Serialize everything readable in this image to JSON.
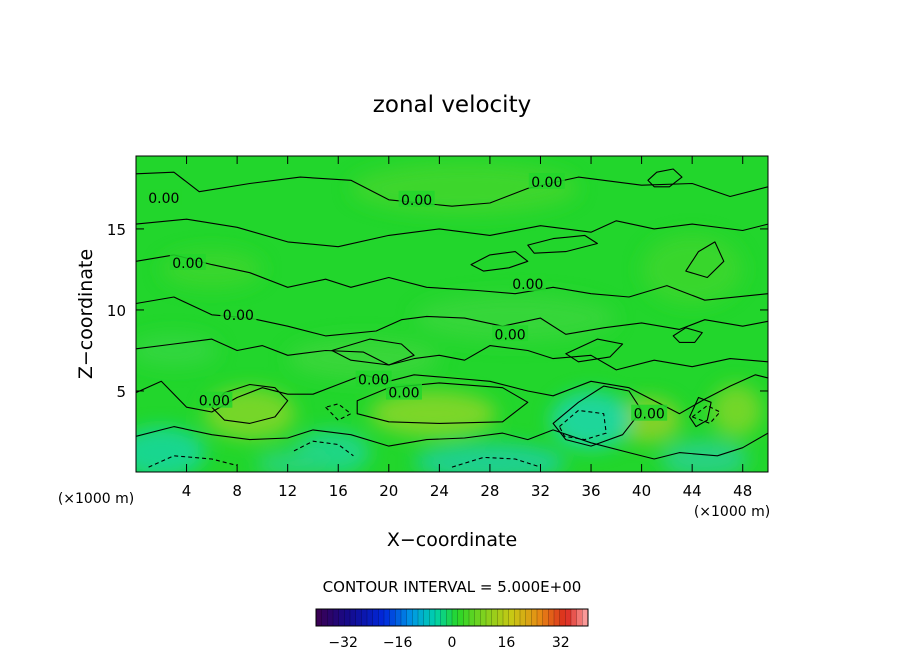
{
  "chart_data": {
    "type": "heatmap",
    "title": "zonal velocity",
    "xlabel": "X−coordinate",
    "ylabel": "Z−coordinate",
    "x_unit_left": "(×1000 m)",
    "x_unit_right": "(×1000 m)",
    "xlim": [
      0,
      50
    ],
    "ylim": [
      0,
      19.5
    ],
    "xticks": [
      4,
      8,
      12,
      16,
      20,
      24,
      28,
      32,
      36,
      40,
      44,
      48
    ],
    "xtick_labels": [
      "4",
      "8",
      "12",
      "16",
      "20",
      "24",
      "28",
      "32",
      "36",
      "40",
      "44",
      "48"
    ],
    "yticks": [
      5,
      10,
      15
    ],
    "ytick_labels": [
      "5",
      "10",
      "15"
    ],
    "contour_interval_text": "CONTOUR INTERVAL = 5.000E+00",
    "contour_labels": [
      {
        "text": "0.00",
        "x": 2.2,
        "z": 16.9
      },
      {
        "text": "0.00",
        "x": 22.2,
        "z": 16.8
      },
      {
        "text": "0.00",
        "x": 32.5,
        "z": 17.9
      },
      {
        "text": "0.00",
        "x": 4.1,
        "z": 12.9
      },
      {
        "text": "0.00",
        "x": 31.0,
        "z": 11.6
      },
      {
        "text": "0.00",
        "x": 8.1,
        "z": 9.7
      },
      {
        "text": "0.00",
        "x": 29.6,
        "z": 8.5
      },
      {
        "text": "0.00",
        "x": 18.8,
        "z": 5.7
      },
      {
        "text": "0.00",
        "x": 21.2,
        "z": 4.9
      },
      {
        "text": "0.00",
        "x": 6.2,
        "z": 4.4
      },
      {
        "text": "0.00",
        "x": 40.6,
        "z": 3.6
      }
    ],
    "colorbar": {
      "range": [
        -40,
        40
      ],
      "ticks": [
        -32,
        -16,
        0,
        16,
        32
      ],
      "tick_labels": [
        "−32",
        "−16",
        "0",
        "16",
        "32"
      ]
    },
    "grid": false,
    "legend": "colorbar-bottom",
    "colors": {
      "background_field": "#22d62c",
      "contour_line": "#000000"
    }
  }
}
